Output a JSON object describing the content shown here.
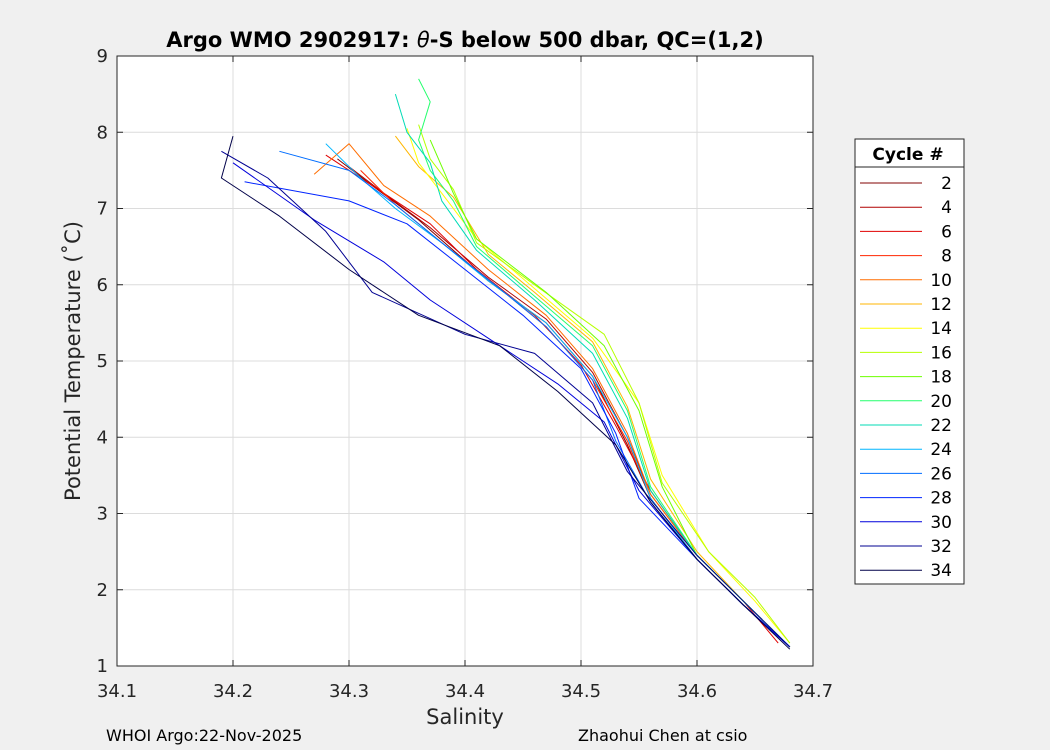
{
  "chart_data": {
    "type": "line",
    "title_prefix": "Argo WMO 2902917: ",
    "title_theta": "θ",
    "title_suffix": "-S below 500 dbar,  QC=(1,2)",
    "xlabel": "Salinity",
    "ylabel": "Potential Temperature (˚C)",
    "xlim": [
      34.1,
      34.7
    ],
    "ylim": [
      1,
      9
    ],
    "x_ticks": [
      "34.1",
      "34.2",
      "34.3",
      "34.4",
      "34.5",
      "34.6",
      "34.7"
    ],
    "y_ticks": [
      "1",
      "2",
      "3",
      "4",
      "5",
      "6",
      "7",
      "8",
      "9"
    ],
    "grid": true,
    "legend": {
      "title": "Cycle #",
      "position": "outside-right"
    },
    "series": [
      {
        "name": "2",
        "color": "#800000",
        "values": [
          [
            34.29,
            7.65
          ],
          [
            34.32,
            7.3
          ],
          [
            34.36,
            6.85
          ],
          [
            34.42,
            6.05
          ],
          [
            34.47,
            5.5
          ],
          [
            34.51,
            4.8
          ],
          [
            34.54,
            3.9
          ],
          [
            34.56,
            3.2
          ],
          [
            34.6,
            2.4
          ],
          [
            34.64,
            1.8
          ],
          [
            34.68,
            1.25
          ]
        ]
      },
      {
        "name": "4",
        "color": "#b00000",
        "values": [
          [
            34.3,
            7.55
          ],
          [
            34.33,
            7.2
          ],
          [
            34.37,
            6.75
          ],
          [
            34.42,
            6.1
          ],
          [
            34.47,
            5.55
          ],
          [
            34.51,
            4.85
          ],
          [
            34.54,
            4.0
          ],
          [
            34.56,
            3.25
          ],
          [
            34.6,
            2.45
          ],
          [
            34.64,
            1.85
          ],
          [
            34.68,
            1.25
          ]
        ]
      },
      {
        "name": "6",
        "color": "#e00000",
        "values": [
          [
            34.28,
            7.7
          ],
          [
            34.32,
            7.3
          ],
          [
            34.37,
            6.8
          ],
          [
            34.41,
            6.2
          ],
          [
            34.46,
            5.6
          ],
          [
            34.5,
            4.95
          ],
          [
            34.53,
            4.15
          ],
          [
            34.56,
            3.3
          ],
          [
            34.6,
            2.45
          ],
          [
            34.64,
            1.85
          ],
          [
            34.67,
            1.3
          ]
        ]
      },
      {
        "name": "8",
        "color": "#ff2400",
        "values": [
          [
            34.31,
            7.5
          ],
          [
            34.34,
            7.05
          ],
          [
            34.38,
            6.55
          ],
          [
            34.43,
            5.95
          ],
          [
            34.47,
            5.45
          ],
          [
            34.51,
            4.75
          ],
          [
            34.54,
            3.95
          ],
          [
            34.56,
            3.2
          ],
          [
            34.6,
            2.4
          ],
          [
            34.64,
            1.8
          ],
          [
            34.68,
            1.25
          ]
        ]
      },
      {
        "name": "10",
        "color": "#ff6d00",
        "values": [
          [
            34.27,
            7.45
          ],
          [
            34.3,
            7.85
          ],
          [
            34.33,
            7.3
          ],
          [
            34.37,
            6.9
          ],
          [
            34.42,
            6.2
          ],
          [
            34.47,
            5.6
          ],
          [
            34.51,
            4.9
          ],
          [
            34.54,
            4.05
          ],
          [
            34.56,
            3.25
          ],
          [
            34.6,
            2.45
          ],
          [
            34.64,
            1.85
          ],
          [
            34.68,
            1.25
          ]
        ]
      },
      {
        "name": "12",
        "color": "#ffb600",
        "values": [
          [
            34.34,
            7.95
          ],
          [
            34.36,
            7.55
          ],
          [
            34.39,
            7.15
          ],
          [
            34.42,
            6.4
          ],
          [
            34.46,
            5.9
          ],
          [
            34.51,
            5.25
          ],
          [
            34.54,
            4.4
          ],
          [
            34.56,
            3.45
          ],
          [
            34.6,
            2.5
          ],
          [
            34.64,
            1.85
          ],
          [
            34.68,
            1.25
          ]
        ]
      },
      {
        "name": "14",
        "color": "#ffff00",
        "values": [
          [
            34.35,
            8.05
          ],
          [
            34.36,
            7.6
          ],
          [
            34.38,
            7.2
          ],
          [
            34.41,
            6.6
          ],
          [
            34.46,
            5.95
          ],
          [
            34.51,
            5.3
          ],
          [
            34.55,
            4.45
          ],
          [
            34.57,
            3.5
          ],
          [
            34.61,
            2.5
          ],
          [
            34.65,
            1.85
          ],
          [
            34.68,
            1.3
          ]
        ]
      },
      {
        "name": "16",
        "color": "#b6ff00",
        "values": [
          [
            34.36,
            8.1
          ],
          [
            34.37,
            7.65
          ],
          [
            34.39,
            7.25
          ],
          [
            34.41,
            6.55
          ],
          [
            34.46,
            6.0
          ],
          [
            34.52,
            5.35
          ],
          [
            34.55,
            4.45
          ],
          [
            34.57,
            3.4
          ],
          [
            34.61,
            2.5
          ],
          [
            34.65,
            1.9
          ],
          [
            34.68,
            1.3
          ]
        ]
      },
      {
        "name": "18",
        "color": "#6dff00",
        "values": [
          [
            34.37,
            7.9
          ],
          [
            34.38,
            7.55
          ],
          [
            34.39,
            7.2
          ],
          [
            34.41,
            6.6
          ],
          [
            34.47,
            5.9
          ],
          [
            34.52,
            5.2
          ],
          [
            34.55,
            4.35
          ],
          [
            34.57,
            3.35
          ],
          [
            34.6,
            2.45
          ],
          [
            34.64,
            1.85
          ],
          [
            34.68,
            1.25
          ]
        ]
      },
      {
        "name": "20",
        "color": "#24ff6d",
        "values": [
          [
            34.36,
            8.7
          ],
          [
            34.37,
            8.4
          ],
          [
            34.36,
            7.9
          ],
          [
            34.37,
            7.5
          ],
          [
            34.39,
            7.1
          ],
          [
            34.41,
            6.5
          ],
          [
            34.46,
            5.85
          ],
          [
            34.51,
            5.2
          ],
          [
            34.54,
            4.35
          ],
          [
            34.56,
            3.35
          ],
          [
            34.6,
            2.45
          ],
          [
            34.64,
            1.85
          ],
          [
            34.68,
            1.25
          ]
        ]
      },
      {
        "name": "22",
        "color": "#00dbb6",
        "values": [
          [
            34.34,
            8.5
          ],
          [
            34.35,
            8.0
          ],
          [
            34.37,
            7.6
          ],
          [
            34.38,
            7.1
          ],
          [
            34.41,
            6.45
          ],
          [
            34.46,
            5.8
          ],
          [
            34.51,
            5.1
          ],
          [
            34.54,
            4.25
          ],
          [
            34.56,
            3.3
          ],
          [
            34.6,
            2.45
          ],
          [
            34.64,
            1.85
          ],
          [
            34.68,
            1.25
          ]
        ]
      },
      {
        "name": "24",
        "color": "#00b6ff",
        "values": [
          [
            34.28,
            7.85
          ],
          [
            34.31,
            7.4
          ],
          [
            34.34,
            7.0
          ],
          [
            34.38,
            6.55
          ],
          [
            34.42,
            6.05
          ],
          [
            34.47,
            5.5
          ],
          [
            34.51,
            4.8
          ],
          [
            34.54,
            4.0
          ],
          [
            34.56,
            3.2
          ],
          [
            34.6,
            2.4
          ],
          [
            34.64,
            1.8
          ],
          [
            34.68,
            1.25
          ]
        ]
      },
      {
        "name": "26",
        "color": "#006dff",
        "values": [
          [
            34.24,
            7.75
          ],
          [
            34.3,
            7.5
          ],
          [
            34.34,
            7.05
          ],
          [
            34.38,
            6.55
          ],
          [
            34.43,
            5.95
          ],
          [
            34.47,
            5.45
          ],
          [
            34.51,
            4.75
          ],
          [
            34.53,
            3.95
          ],
          [
            34.56,
            3.15
          ],
          [
            34.6,
            2.4
          ],
          [
            34.64,
            1.8
          ],
          [
            34.68,
            1.25
          ]
        ]
      },
      {
        "name": "28",
        "color": "#0024ff",
        "values": [
          [
            34.21,
            7.35
          ],
          [
            34.3,
            7.1
          ],
          [
            34.35,
            6.8
          ],
          [
            34.4,
            6.2
          ],
          [
            34.45,
            5.6
          ],
          [
            34.5,
            4.9
          ],
          [
            34.53,
            4.05
          ],
          [
            34.55,
            3.2
          ],
          [
            34.6,
            2.4
          ],
          [
            34.64,
            1.8
          ],
          [
            34.68,
            1.25
          ]
        ]
      },
      {
        "name": "30",
        "color": "#0000db",
        "values": [
          [
            34.2,
            7.6
          ],
          [
            34.27,
            6.85
          ],
          [
            34.33,
            6.3
          ],
          [
            34.37,
            5.8
          ],
          [
            34.43,
            5.2
          ],
          [
            34.48,
            4.7
          ],
          [
            34.52,
            4.2
          ],
          [
            34.55,
            3.3
          ],
          [
            34.6,
            2.4
          ],
          [
            34.64,
            1.8
          ],
          [
            34.68,
            1.25
          ]
        ]
      },
      {
        "name": "32",
        "color": "#000092",
        "values": [
          [
            34.19,
            7.75
          ],
          [
            34.23,
            7.4
          ],
          [
            34.28,
            6.7
          ],
          [
            34.32,
            5.9
          ],
          [
            34.4,
            5.35
          ],
          [
            34.46,
            5.1
          ],
          [
            34.51,
            4.45
          ],
          [
            34.54,
            3.55
          ],
          [
            34.6,
            2.45
          ],
          [
            34.64,
            1.85
          ],
          [
            34.68,
            1.25
          ]
        ]
      },
      {
        "name": "34",
        "color": "#000049",
        "values": [
          [
            34.2,
            7.95
          ],
          [
            34.19,
            7.4
          ],
          [
            34.24,
            6.9
          ],
          [
            34.3,
            6.2
          ],
          [
            34.36,
            5.6
          ],
          [
            34.43,
            5.2
          ],
          [
            34.48,
            4.6
          ],
          [
            34.53,
            3.9
          ],
          [
            34.56,
            3.15
          ],
          [
            34.6,
            2.4
          ],
          [
            34.64,
            1.8
          ],
          [
            34.68,
            1.22
          ]
        ]
      }
    ]
  },
  "footer": {
    "left": "WHOI Argo:22-Nov-2025",
    "right": "Zhaohui Chen at csio"
  }
}
